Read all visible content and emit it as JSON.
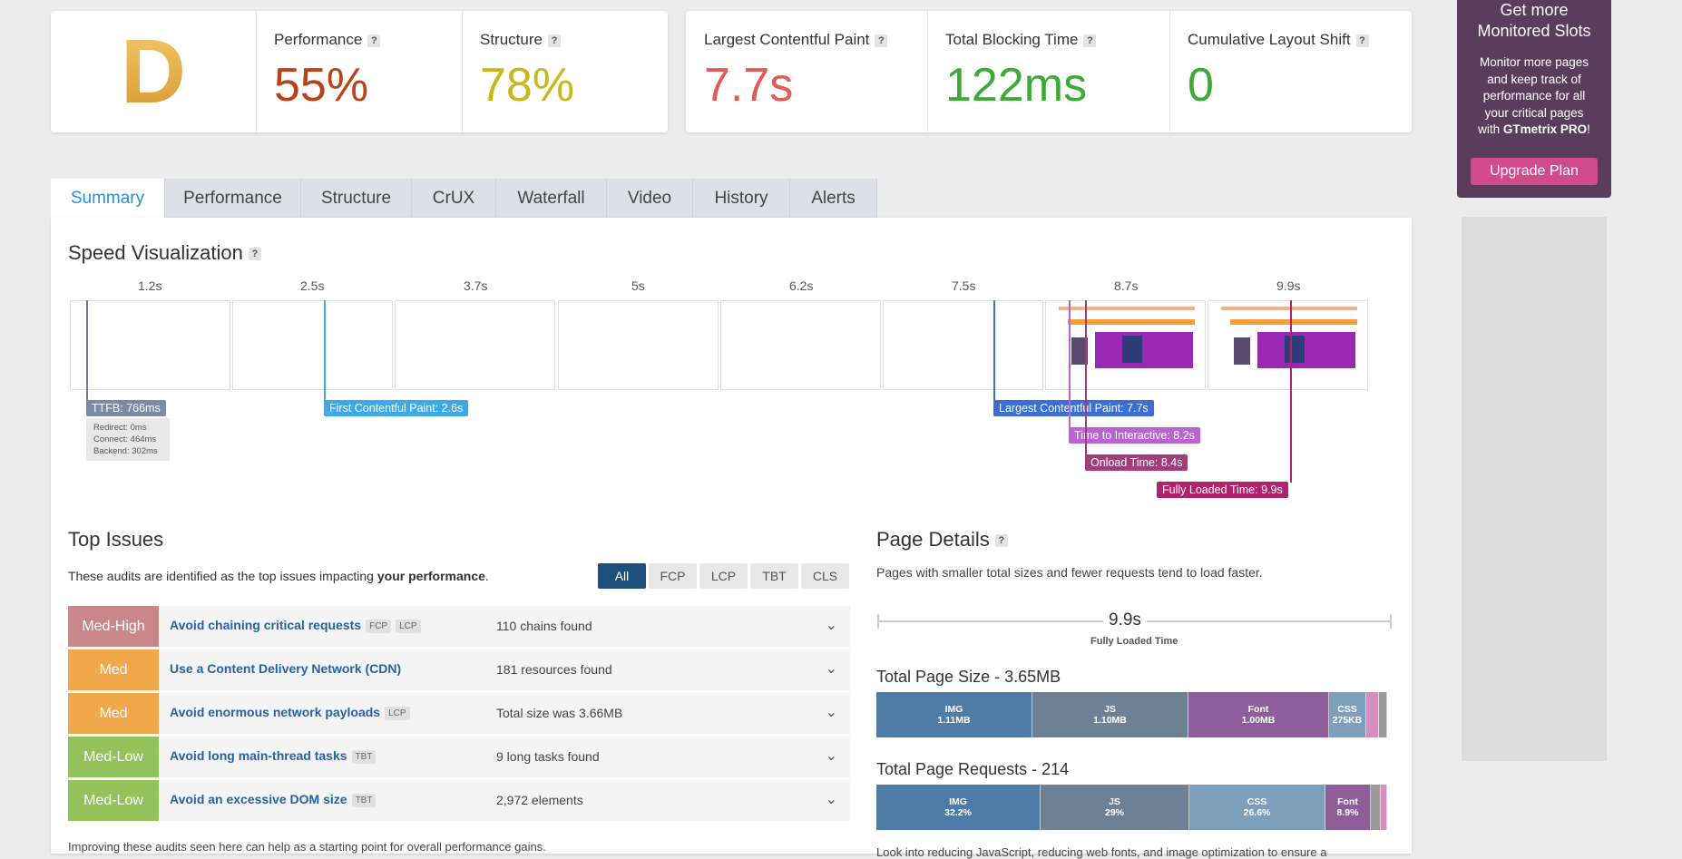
{
  "grade": {
    "letter": "D"
  },
  "gtmetrix_scores": {
    "performance": {
      "label": "Performance",
      "value": "55%",
      "color": "#b8431a"
    },
    "structure": {
      "label": "Structure",
      "value": "78%",
      "color": "#c9b817"
    }
  },
  "web_vitals": {
    "lcp": {
      "label": "Largest Contentful Paint",
      "value": "7.7s",
      "color": "#e25b56"
    },
    "tbt": {
      "label": "Total Blocking Time",
      "value": "122ms",
      "color": "#3cab36"
    },
    "cls": {
      "label": "Cumulative Layout Shift",
      "value": "0",
      "color": "#3cab36"
    }
  },
  "help_glyph": "?",
  "promo": {
    "title_line1": "Get more",
    "title_line2": "Monitored Slots",
    "body_l1": "Monitor more pages",
    "body_l2": "and keep track of",
    "body_l3": "performance for all",
    "body_l4": "your critical pages",
    "body_l5_pre": "with ",
    "body_l5_brand": "GTmetrix PRO",
    "body_l5_post": "!",
    "button": "Upgrade Plan"
  },
  "tabs": [
    "Summary",
    "Performance",
    "Structure",
    "CrUX",
    "Waterfall",
    "Video",
    "History",
    "Alerts"
  ],
  "speed_viz": {
    "title": "Speed Visualization",
    "ticks": [
      "1.2s",
      "2.5s",
      "3.7s",
      "5s",
      "6.2s",
      "7.5s",
      "8.7s",
      "9.9s"
    ],
    "ttfb": "TTFB: 766ms",
    "ttfb_redirect": "Redirect: 0ms",
    "ttfb_connect": "Connect: 464ms",
    "ttfb_backend": "Backend: 302ms",
    "fcp": "First Contentful Paint: 2.6s",
    "lcp": "Largest Contentful Paint: 7.7s",
    "tti": "Time to Interactive: 8.2s",
    "onload": "Onload Time: 8.4s",
    "fully_loaded": "Fully Loaded Time: 9.9s"
  },
  "top_issues": {
    "title": "Top Issues",
    "desc_pre": "These audits are identified as the top issues impacting ",
    "desc_bold": "your performance",
    "desc_post": ".",
    "filters": [
      "All",
      "FCP",
      "LCP",
      "TBT",
      "CLS"
    ],
    "items": [
      {
        "severity": "Med-High",
        "color": "#c9878a",
        "title": "Avoid chaining critical requests",
        "tags": [
          "FCP",
          "LCP"
        ],
        "value": "110 chains found"
      },
      {
        "severity": "Med",
        "color": "#f0a84a",
        "title": "Use a Content Delivery Network (CDN)",
        "tags": [],
        "value": "181 resources found"
      },
      {
        "severity": "Med",
        "color": "#f0a84a",
        "title": "Avoid enormous network payloads",
        "tags": [
          "LCP"
        ],
        "value": "Total size was 3.66MB"
      },
      {
        "severity": "Med-Low",
        "color": "#93c35a",
        "title": "Avoid long main-thread tasks",
        "tags": [
          "TBT"
        ],
        "value": "9 long tasks found"
      },
      {
        "severity": "Med-Low",
        "color": "#93c35a",
        "title": "Avoid an excessive DOM size",
        "tags": [
          "TBT"
        ],
        "value": "2,972 elements"
      }
    ],
    "footer": "Improving these audits seen here can help as a starting point for overall performance gains."
  },
  "page_details": {
    "title": "Page Details",
    "desc": "Pages with smaller total sizes and fewer requests tend to load faster.",
    "fully_loaded_value": "9.9s",
    "fully_loaded_label": "Fully Loaded Time",
    "size_title": "Total Page Size - 3.65MB",
    "size_segments": [
      {
        "name": "IMG",
        "value": "1.11MB",
        "share": 0.305,
        "color": "#4e7ca6"
      },
      {
        "name": "JS",
        "value": "1.10MB",
        "share": 0.305,
        "color": "#6e8194"
      },
      {
        "name": "Font",
        "value": "1.00MB",
        "share": 0.275,
        "color": "#8d5e9a"
      },
      {
        "name": "CSS",
        "value": "275KB",
        "share": 0.073,
        "color": "#7e9fbc"
      },
      {
        "name": "",
        "value": "",
        "share": 0.024,
        "color": "#d48fc0"
      },
      {
        "name": "",
        "value": "",
        "share": 0.018,
        "color": "#9a9a9a"
      }
    ],
    "requests_title": "Total Page Requests - 214",
    "request_segments": [
      {
        "name": "IMG",
        "value": "32.2%",
        "share": 0.322,
        "color": "#4e7ca6"
      },
      {
        "name": "JS",
        "value": "29%",
        "share": 0.29,
        "color": "#6e8194"
      },
      {
        "name": "CSS",
        "value": "26.6%",
        "share": 0.266,
        "color": "#7e9fbc"
      },
      {
        "name": "Font",
        "value": "8.9%",
        "share": 0.089,
        "color": "#8d5e9a"
      },
      {
        "name": "",
        "value": "",
        "share": 0.019,
        "color": "#9a9a9a"
      },
      {
        "name": "",
        "value": "",
        "share": 0.014,
        "color": "#d48fc0"
      }
    ],
    "footer": "Look into reducing JavaScript, reducing web fonts, and image optimization to ensure a"
  }
}
